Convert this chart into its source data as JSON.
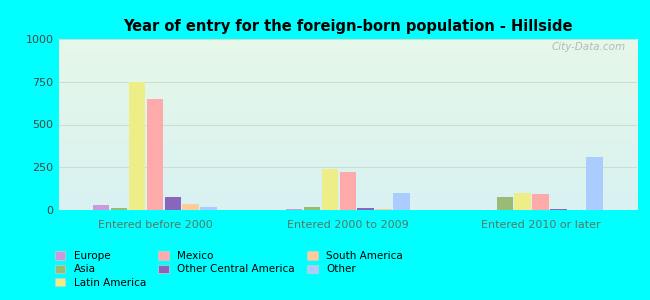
{
  "title": "Year of entry for the foreign-born population - Hillside",
  "categories": [
    "Entered before 2000",
    "Entered 2000 to 2009",
    "Entered 2010 or later"
  ],
  "series_order": [
    "Europe",
    "Asia",
    "Latin America",
    "Mexico",
    "Other Central America",
    "South America",
    "Other"
  ],
  "series": {
    "Europe": [
      30,
      5,
      0
    ],
    "Asia": [
      10,
      15,
      75
    ],
    "Latin America": [
      750,
      240,
      100
    ],
    "Mexico": [
      650,
      220,
      95
    ],
    "Other Central America": [
      75,
      10,
      5
    ],
    "South America": [
      35,
      5,
      0
    ],
    "Other": [
      15,
      100,
      310
    ]
  },
  "colors": {
    "Europe": "#cc99dd",
    "Asia": "#99bb77",
    "Latin America": "#eeee88",
    "Mexico": "#ffaaaa",
    "Other Central America": "#8866bb",
    "South America": "#ffcc99",
    "Other": "#aaccff"
  },
  "ylim": [
    0,
    1000
  ],
  "yticks": [
    0,
    250,
    500,
    750,
    1000
  ],
  "outer_bg": "#00ffff",
  "plot_bg": "#e8f5ee",
  "watermark": "City-Data.com",
  "legend_order": [
    "Europe",
    "Mexico",
    "Other",
    "Asia",
    "Other Central America",
    "",
    "Latin America",
    "South America"
  ],
  "legend_labels": [
    "Europe",
    "Mexico",
    "Other",
    "Asia",
    "Other Central America",
    "",
    "Latin America",
    "South America"
  ]
}
